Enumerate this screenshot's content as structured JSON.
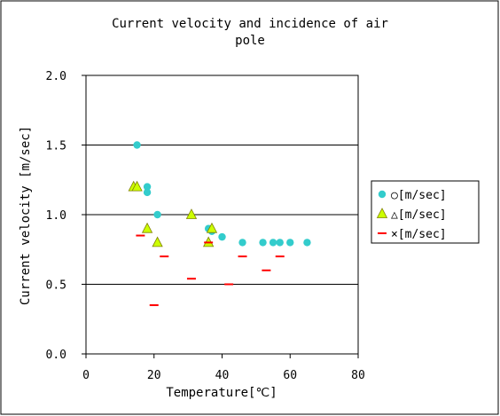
{
  "chart_data": {
    "type": "scatter",
    "title_lines": [
      "Current velocity and incidence of air",
      "pole"
    ],
    "xlabel": "Temperature[℃]",
    "ylabel": "Current velocity [m/sec]",
    "xlim": [
      0,
      80
    ],
    "ylim": [
      0,
      2.0
    ],
    "xticks": [
      0,
      20,
      40,
      60,
      80
    ],
    "yticks": [
      0.0,
      0.5,
      1.0,
      1.5,
      2.0
    ],
    "xtick_labels": [
      "0",
      "20",
      "40",
      "60",
      "80"
    ],
    "ytick_labels": [
      "0.0",
      "0.5",
      "1.0",
      "1.5",
      "2.0"
    ],
    "grid": "horizontal major lines",
    "legend_position": "right",
    "series": [
      {
        "name": "○[m/sec]",
        "marker": "circle",
        "color": "#33cccc",
        "points": [
          [
            15,
            1.5
          ],
          [
            18,
            1.2
          ],
          [
            18,
            1.16
          ],
          [
            21,
            1.0
          ],
          [
            36,
            0.9
          ],
          [
            37,
            0.88
          ],
          [
            40,
            0.84
          ],
          [
            46,
            0.8
          ],
          [
            52,
            0.8
          ],
          [
            55,
            0.8
          ],
          [
            57,
            0.8
          ],
          [
            60,
            0.8
          ],
          [
            65,
            0.8
          ]
        ]
      },
      {
        "name": "△[m/sec]",
        "marker": "triangle",
        "color": "#ccff00",
        "points": [
          [
            14,
            1.2
          ],
          [
            15,
            1.2
          ],
          [
            18,
            0.9
          ],
          [
            21,
            0.8
          ],
          [
            31,
            1.0
          ],
          [
            36,
            0.8
          ],
          [
            37,
            0.9
          ]
        ]
      },
      {
        "name": "×[m/sec]",
        "marker": "dash",
        "color": "#ff0000",
        "points": [
          [
            16,
            0.85
          ],
          [
            20,
            0.35
          ],
          [
            23,
            0.7
          ],
          [
            31,
            0.54
          ],
          [
            36,
            0.8
          ],
          [
            42,
            0.5
          ],
          [
            46,
            0.7
          ],
          [
            53,
            0.6
          ],
          [
            57,
            0.7
          ]
        ]
      }
    ]
  }
}
